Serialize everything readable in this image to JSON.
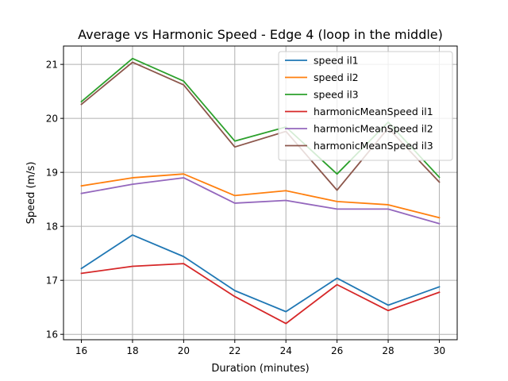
{
  "chart_data": {
    "type": "line",
    "title": "Average vs Harmonic Speed - Edge 4 (loop in the middle)",
    "xlabel": "Duration (minutes)",
    "ylabel": "Speed (m/s)",
    "x": [
      16,
      18,
      20,
      22,
      24,
      26,
      28,
      30
    ],
    "xticks": [
      16,
      18,
      20,
      22,
      24,
      26,
      28,
      30
    ],
    "yticks": [
      16,
      17,
      18,
      19,
      20,
      21
    ],
    "xlim": [
      15.3,
      30.7
    ],
    "ylim": [
      15.9,
      21.34
    ],
    "grid": true,
    "legend_position": "top-right",
    "series": [
      {
        "name": "speed il1",
        "color": "#1f77b4",
        "values": [
          17.22,
          17.84,
          17.44,
          16.81,
          16.42,
          17.04,
          16.54,
          16.88
        ]
      },
      {
        "name": "speed il2",
        "color": "#ff7f0e",
        "values": [
          18.75,
          18.9,
          18.97,
          18.57,
          18.66,
          18.46,
          18.4,
          18.16
        ]
      },
      {
        "name": "speed il3",
        "color": "#2ca02c",
        "values": [
          20.31,
          21.11,
          20.69,
          19.58,
          19.84,
          18.97,
          19.93,
          18.91
        ]
      },
      {
        "name": "harmonicMeanSpeed il1",
        "color": "#d62728",
        "values": [
          17.13,
          17.26,
          17.31,
          16.7,
          16.2,
          16.92,
          16.44,
          16.78
        ]
      },
      {
        "name": "harmonicMeanSpeed il2",
        "color": "#9467bd",
        "values": [
          18.61,
          18.78,
          18.9,
          18.43,
          18.48,
          18.32,
          18.32,
          18.05
        ]
      },
      {
        "name": "harmonicMeanSpeed il3",
        "color": "#8c564b",
        "values": [
          20.26,
          21.04,
          20.62,
          19.47,
          19.76,
          18.67,
          19.82,
          18.82
        ]
      }
    ]
  }
}
